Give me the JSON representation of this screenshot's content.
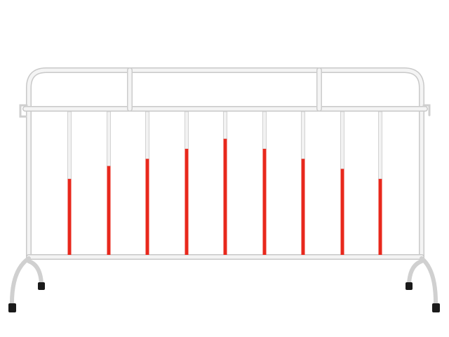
{
  "subject": "crowd-control-barrier",
  "colors": {
    "background": "#ffffff",
    "frame": "#f2f2f2",
    "frame_shade": "#c9c9c9",
    "stripe_red": "#e8281c",
    "foot_cap": "#1a1a1a"
  },
  "bars": [
    {
      "red_fraction": 0.53
    },
    {
      "red_fraction": 0.62
    },
    {
      "red_fraction": 0.67
    },
    {
      "red_fraction": 0.74
    },
    {
      "red_fraction": 0.81
    },
    {
      "red_fraction": 0.74
    },
    {
      "red_fraction": 0.67
    },
    {
      "red_fraction": 0.6
    },
    {
      "red_fraction": 0.53
    }
  ]
}
